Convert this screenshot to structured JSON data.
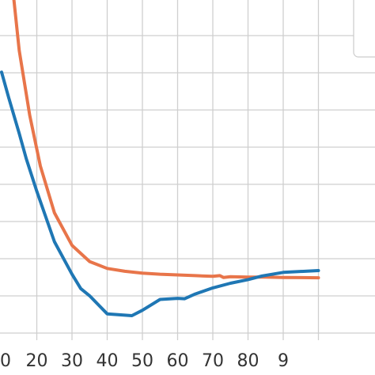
{
  "chart_data": {
    "type": "line",
    "title": "",
    "xlabel": "",
    "ylabel": "",
    "x_ticks": [
      "0",
      "20",
      "30",
      "40",
      "50",
      "60",
      "70",
      "80",
      "9"
    ],
    "xlim": [
      10,
      100
    ],
    "ylim": [
      0,
      100
    ],
    "grid": true,
    "legend": "top-right",
    "series": [
      {
        "color": "#e8754a",
        "points": [
          [
            13.5,
            100
          ],
          [
            15,
            86
          ],
          [
            18,
            68
          ],
          [
            21,
            54
          ],
          [
            25,
            41
          ],
          [
            30,
            32
          ],
          [
            35,
            27.5
          ],
          [
            40,
            25.6
          ],
          [
            45,
            24.8
          ],
          [
            50,
            24.3
          ],
          [
            55,
            24.0
          ],
          [
            60,
            23.8
          ],
          [
            65,
            23.6
          ],
          [
            70,
            23.4
          ],
          [
            72,
            23.6
          ],
          [
            73,
            23.1
          ],
          [
            75,
            23.3
          ],
          [
            80,
            23.2
          ],
          [
            85,
            23.2
          ],
          [
            90,
            23.1
          ],
          [
            100,
            23.0
          ]
        ]
      },
      {
        "color": "#1f77b4",
        "points": [
          [
            10,
            80
          ],
          [
            12,
            73
          ],
          [
            15,
            63
          ],
          [
            17,
            56
          ],
          [
            20,
            47
          ],
          [
            25,
            33
          ],
          [
            30,
            24
          ],
          [
            32.5,
            20
          ],
          [
            35,
            18
          ],
          [
            40,
            13
          ],
          [
            47,
            12.5
          ],
          [
            50,
            14
          ],
          [
            55,
            17
          ],
          [
            60,
            17.3
          ],
          [
            62,
            17.2
          ],
          [
            65,
            18.5
          ],
          [
            70,
            20.2
          ],
          [
            75,
            21.5
          ],
          [
            80,
            22.5
          ],
          [
            84,
            23.5
          ],
          [
            90,
            24.5
          ],
          [
            100,
            25
          ]
        ]
      }
    ]
  }
}
